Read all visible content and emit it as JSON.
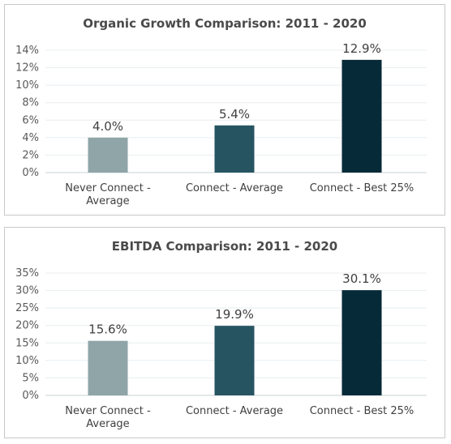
{
  "chart_data": [
    {
      "type": "bar",
      "title": "Organic Growth Comparison: 2011 - 2020",
      "categories": [
        [
          "Never Connect -",
          "Average"
        ],
        [
          "Connect - Average"
        ],
        [
          "Connect - Best 25%"
        ]
      ],
      "values": [
        4.0,
        5.4,
        12.9
      ],
      "data_labels": [
        "4.0%",
        "5.4%",
        "12.9%"
      ],
      "bar_colors": [
        "#8fa5a8",
        "#265561",
        "#062a38"
      ],
      "y_ticks": [
        "0%",
        "2%",
        "4%",
        "6%",
        "8%",
        "10%",
        "12%",
        "14%"
      ],
      "ylim": [
        0,
        14
      ],
      "grid": true,
      "legend": "none"
    },
    {
      "type": "bar",
      "title": "EBITDA Comparison: 2011 - 2020",
      "categories": [
        [
          "Never Connect -",
          "Average"
        ],
        [
          "Connect - Average"
        ],
        [
          "Connect - Best 25%"
        ]
      ],
      "values": [
        15.6,
        19.9,
        30.1
      ],
      "data_labels": [
        "15.6%",
        "19.9%",
        "30.1%"
      ],
      "bar_colors": [
        "#8fa5a8",
        "#265561",
        "#062a38"
      ],
      "y_ticks": [
        "0%",
        "5%",
        "10%",
        "15%",
        "20%",
        "25%",
        "30%",
        "35%"
      ],
      "ylim": [
        0,
        35
      ],
      "grid": true,
      "legend": "none"
    }
  ]
}
